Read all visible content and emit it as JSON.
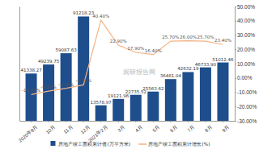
{
  "chart_data": {
    "type": "bar",
    "categories": [
      "2020年9月",
      "10月",
      "11月",
      "12月",
      "2021年2月",
      "3月",
      "4月",
      "5月",
      "6月",
      "7月",
      "8月",
      "9月"
    ],
    "series": [
      {
        "name": "房地产竣工面积累计值(万平方米)",
        "type": "bar",
        "color": "#1f4e8c",
        "values": [
          41338.27,
          49239.75,
          59087.63,
          91218.23,
          13578.97,
          19121.96,
          22735.52,
          25563.62,
          36481.04,
          42632.19,
          46733.9,
          51012.46
        ],
        "value_labels": [
          "41338.27",
          "49239.75",
          "59087.63",
          "91218.23",
          "13578.97",
          "19121.96",
          "22735.52",
          "25563.62",
          "36481.04",
          "42632.19",
          "46733.90",
          "51012.46"
        ]
      },
      {
        "name": "房地产竣工面积累计增长(%)",
        "type": "line",
        "axis": "y2",
        "color": "#f4b183",
        "values": [
          -11.6,
          -9.2,
          -7.3,
          -4.9,
          40.4,
          22.9,
          17.9,
          16.4,
          25.7,
          26,
          25.7,
          23.4
        ],
        "value_labels": [
          "-11.60%",
          "-9.20%",
          "-7.30%",
          "-4.90%",
          "40.40%",
          "22.90%",
          "17.90%",
          "16.40%",
          "25.70%",
          "26.00%",
          "25.70%",
          "23.40%"
        ]
      }
    ],
    "ylim": [
      0,
      100000
    ],
    "y2lim": [
      -30,
      50
    ],
    "y2ticks": [
      {
        "value": 50,
        "label": "50.00%"
      },
      {
        "value": 40,
        "label": "40.00%"
      },
      {
        "value": 30,
        "label": "30.00%"
      },
      {
        "value": 20,
        "label": "20.00%"
      },
      {
        "value": 10,
        "label": "10.00%"
      },
      {
        "value": 0,
        "label": "0.00%"
      },
      {
        "value": -10,
        "label": "-10.00%"
      },
      {
        "value": -20,
        "label": "-20.00%"
      },
      {
        "value": -30,
        "label": "-30.00%"
      }
    ],
    "data_labels": true,
    "legend": "bottom",
    "annotations": [
      "观研报告网"
    ]
  }
}
